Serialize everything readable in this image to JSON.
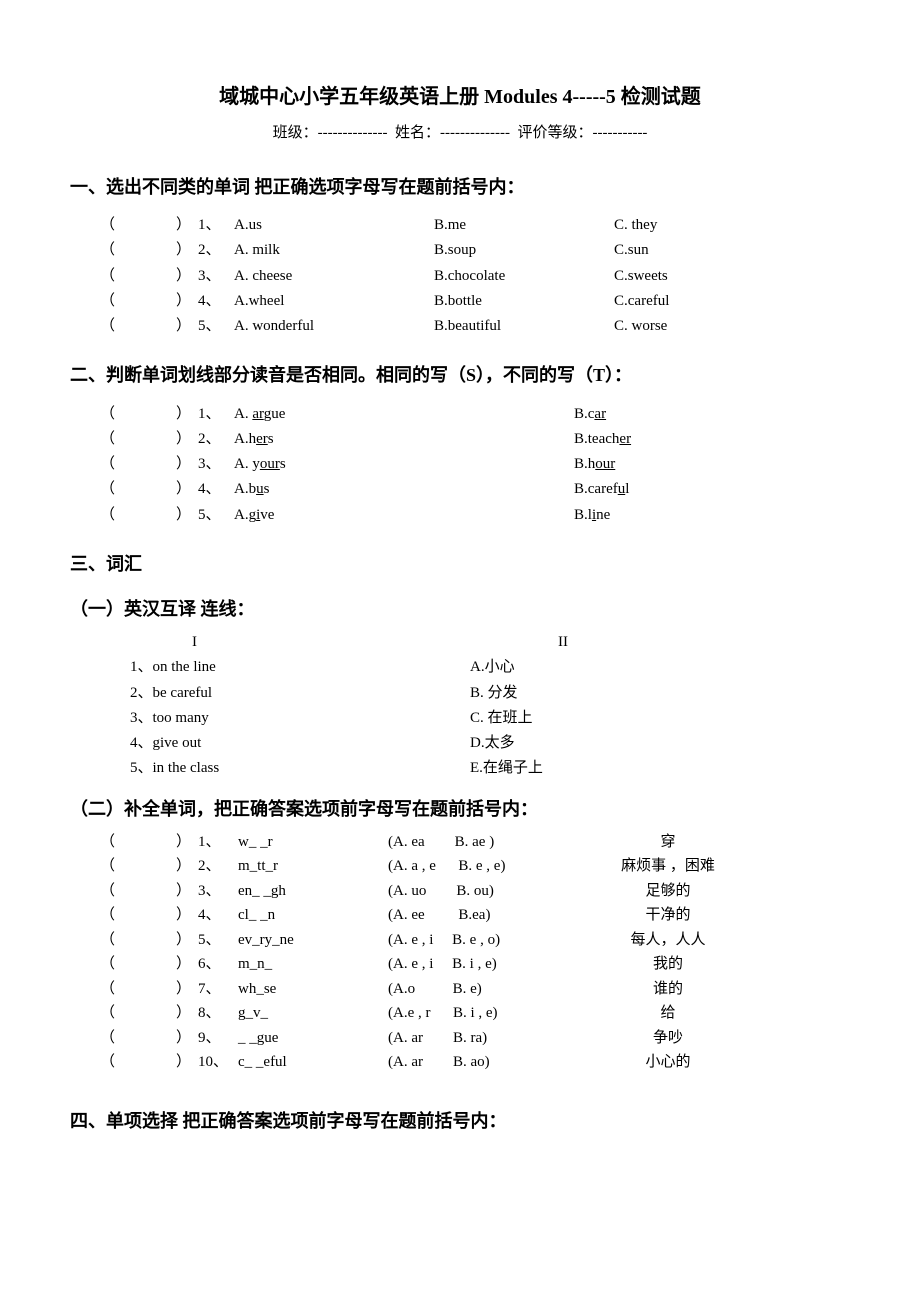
{
  "title": "域城中心小学五年级英语上册 Modules 4-----5 检测试题",
  "header": {
    "class_label": "班级：",
    "name_label": "姓名：",
    "grade_label": "评价等级：",
    "dash1": "--------------",
    "dash2": "--------------",
    "dash3": "-----------"
  },
  "section1": {
    "heading": "一、选出不同类的单词 把正确选项字母写在题前括号内：",
    "rows": [
      {
        "n": "1、",
        "a": "A.us",
        "b": "B.me",
        "c": "C. they"
      },
      {
        "n": "2、",
        "a": "A. milk",
        "b": "B.soup",
        "c": "C.sun"
      },
      {
        "n": "3、",
        "a": "A. cheese",
        "b": "B.chocolate",
        "c": "C.sweets"
      },
      {
        "n": "4、",
        "a": "A.wheel",
        "b": "B.bottle",
        "c": "C.careful"
      },
      {
        "n": "5、",
        "a": "A. wonderful",
        "b": "B.beautiful",
        "c": "C. worse"
      }
    ]
  },
  "section2": {
    "heading": "二、判断单词划线部分读音是否相同。相同的写（S），不同的写（T）：",
    "rows": [
      {
        "n": "1、",
        "a_pre": "A. ",
        "a_u": "ar",
        "a_post": "gue",
        "b_pre": "B.c",
        "b_u": "ar",
        "b_post": ""
      },
      {
        "n": "2、",
        "a_pre": "A.h",
        "a_u": "er",
        "a_post": "s",
        "b_pre": "B.teach",
        "b_u": "er",
        "b_post": ""
      },
      {
        "n": "3、",
        "a_pre": "A. y",
        "a_u": "our",
        "a_post": "s",
        "b_pre": "B.h",
        "b_u": "our",
        "b_post": ""
      },
      {
        "n": "4、",
        "a_pre": "A.b",
        "a_u": "u",
        "a_post": "s",
        "b_pre": "B.caref",
        "b_u": "u",
        "b_post": "l"
      },
      {
        "n": "5、",
        "a_pre": "A.g",
        "a_u": "i",
        "a_post": "ve",
        "b_pre": "B.l",
        "b_u": "i",
        "b_post": "ne"
      }
    ]
  },
  "section3": {
    "heading": "三、词汇",
    "sub1": {
      "heading": "（一）英汉互译 连线：",
      "col_l": "I",
      "col_r": "II",
      "rows": [
        {
          "l": "1、on the line",
          "r": "A.小心"
        },
        {
          "l": "2、be careful",
          "r": "B. 分发"
        },
        {
          "l": "3、too many",
          "r": "C. 在班上"
        },
        {
          "l": "4、give out",
          "r": "D.太多"
        },
        {
          "l": "5、in the class",
          "r": "E.在绳子上"
        }
      ]
    },
    "sub2": {
      "heading": "（二）补全单词，把正确答案选项前字母写在题前括号内：",
      "rows": [
        {
          "n": "1、",
          "w": "w_ _r",
          "o": "(A. ea        B. ae )",
          "m": "穿"
        },
        {
          "n": "2、",
          "w": "m_tt_r",
          "o": "(A. a , e      B. e , e)",
          "m": "麻烦事 ，困难"
        },
        {
          "n": "3、",
          "w": "en_ _gh",
          "o": "(A. uo        B. ou)",
          "m": "足够的"
        },
        {
          "n": "4、",
          "w": "cl_ _n",
          "o": "(A. ee         B.ea)",
          "m": "干净的"
        },
        {
          "n": "5、",
          "w": "ev_ry_ne",
          "o": "(A. e , i     B. e , o)",
          "m": "每人，人人"
        },
        {
          "n": "6、",
          "w": "m_n_",
          "o": "(A. e , i     B. i , e)",
          "m": "我的"
        },
        {
          "n": "7、",
          "w": "wh_se",
          "o": "(A.o          B. e)",
          "m": "谁的"
        },
        {
          "n": "8、",
          "w": "g_v_",
          "o": "(A.e , r      B. i , e)",
          "m": "给"
        },
        {
          "n": "9、",
          "w": "_ _gue",
          "o": "(A. ar        B. ra)",
          "m": "争吵"
        },
        {
          "n": "10、",
          "w": "c_ _eful",
          "o": "(A. ar        B. ao)",
          "m": "小心的"
        }
      ]
    }
  },
  "section4": {
    "heading": "四、单项选择 把正确答案选项前字母写在题前括号内："
  },
  "paren_l": "（",
  "paren_r": "）"
}
